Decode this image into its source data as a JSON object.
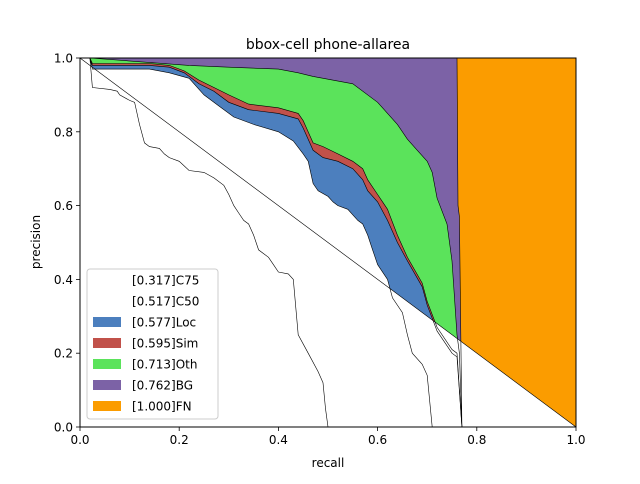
{
  "chart_data": {
    "type": "area",
    "title": "bbox-cell phone-allarea",
    "xlabel": "recall",
    "ylabel": "precision",
    "xlim": [
      0,
      1
    ],
    "ylim": [
      0,
      1
    ],
    "xticks": [
      "0.0",
      "0.2",
      "0.4",
      "0.6",
      "0.8",
      "1.0"
    ],
    "yticks": [
      "0.0",
      "0.2",
      "0.4",
      "0.6",
      "0.8",
      "1.0"
    ],
    "grid": false,
    "legend_position": "lower-left",
    "series": [
      {
        "name": "[0.317]C75",
        "color": "#ffffff",
        "points": [
          [
            0,
            1
          ],
          [
            0.02,
            1
          ],
          [
            0.025,
            0.92
          ],
          [
            0.06,
            0.915
          ],
          [
            0.075,
            0.91
          ],
          [
            0.08,
            0.9
          ],
          [
            0.1,
            0.885
          ],
          [
            0.11,
            0.88
          ],
          [
            0.12,
            0.82
          ],
          [
            0.13,
            0.77
          ],
          [
            0.14,
            0.76
          ],
          [
            0.16,
            0.755
          ],
          [
            0.17,
            0.74
          ],
          [
            0.18,
            0.73
          ],
          [
            0.2,
            0.72
          ],
          [
            0.22,
            0.695
          ],
          [
            0.25,
            0.69
          ],
          [
            0.27,
            0.675
          ],
          [
            0.29,
            0.655
          ],
          [
            0.3,
            0.63
          ],
          [
            0.31,
            0.6
          ],
          [
            0.32,
            0.58
          ],
          [
            0.33,
            0.56
          ],
          [
            0.34,
            0.55
          ],
          [
            0.35,
            0.52
          ],
          [
            0.36,
            0.48
          ],
          [
            0.38,
            0.46
          ],
          [
            0.39,
            0.44
          ],
          [
            0.4,
            0.42
          ],
          [
            0.42,
            0.415
          ],
          [
            0.43,
            0.4
          ],
          [
            0.44,
            0.25
          ],
          [
            0.46,
            0.2
          ],
          [
            0.48,
            0.15
          ],
          [
            0.49,
            0.12
          ],
          [
            0.495,
            0.05
          ],
          [
            0.5,
            0
          ],
          [
            1,
            0
          ]
        ]
      },
      {
        "name": "[0.517]C50",
        "color": "#ffffff",
        "points": [
          [
            0,
            1
          ],
          [
            0.02,
            1
          ],
          [
            0.025,
            0.97
          ],
          [
            0.14,
            0.97
          ],
          [
            0.18,
            0.96
          ],
          [
            0.22,
            0.945
          ],
          [
            0.25,
            0.9
          ],
          [
            0.28,
            0.87
          ],
          [
            0.31,
            0.84
          ],
          [
            0.35,
            0.82
          ],
          [
            0.4,
            0.8
          ],
          [
            0.43,
            0.775
          ],
          [
            0.45,
            0.74
          ],
          [
            0.46,
            0.72
          ],
          [
            0.47,
            0.66
          ],
          [
            0.48,
            0.64
          ],
          [
            0.5,
            0.625
          ],
          [
            0.51,
            0.61
          ],
          [
            0.52,
            0.6
          ],
          [
            0.54,
            0.59
          ],
          [
            0.56,
            0.56
          ],
          [
            0.57,
            0.55
          ],
          [
            0.58,
            0.52
          ],
          [
            0.59,
            0.48
          ],
          [
            0.6,
            0.44
          ],
          [
            0.62,
            0.4
          ],
          [
            0.63,
            0.35
          ],
          [
            0.65,
            0.31
          ],
          [
            0.66,
            0.25
          ],
          [
            0.67,
            0.2
          ],
          [
            0.69,
            0.17
          ],
          [
            0.7,
            0.14
          ],
          [
            0.71,
            0
          ],
          [
            1,
            0
          ]
        ]
      },
      {
        "name": "[0.577]Loc",
        "color": "#4c7fbe",
        "points": [
          [
            0,
            1
          ],
          [
            0.02,
            1
          ],
          [
            0.025,
            0.98
          ],
          [
            0.14,
            0.98
          ],
          [
            0.18,
            0.975
          ],
          [
            0.21,
            0.96
          ],
          [
            0.24,
            0.93
          ],
          [
            0.27,
            0.91
          ],
          [
            0.3,
            0.88
          ],
          [
            0.34,
            0.86
          ],
          [
            0.4,
            0.85
          ],
          [
            0.44,
            0.835
          ],
          [
            0.45,
            0.81
          ],
          [
            0.47,
            0.75
          ],
          [
            0.49,
            0.73
          ],
          [
            0.52,
            0.72
          ],
          [
            0.55,
            0.7
          ],
          [
            0.57,
            0.67
          ],
          [
            0.58,
            0.64
          ],
          [
            0.6,
            0.61
          ],
          [
            0.62,
            0.56
          ],
          [
            0.64,
            0.5
          ],
          [
            0.66,
            0.45
          ],
          [
            0.69,
            0.38
          ],
          [
            0.7,
            0.33
          ],
          [
            0.72,
            0.26
          ],
          [
            0.75,
            0.2
          ],
          [
            0.76,
            0.19
          ],
          [
            0.77,
            0
          ],
          [
            1,
            0
          ]
        ]
      },
      {
        "name": "[0.595]Sim",
        "color": "#c1514a",
        "points": [
          [
            0,
            1
          ],
          [
            0.02,
            1
          ],
          [
            0.025,
            0.985
          ],
          [
            0.14,
            0.985
          ],
          [
            0.18,
            0.98
          ],
          [
            0.21,
            0.965
          ],
          [
            0.24,
            0.94
          ],
          [
            0.27,
            0.92
          ],
          [
            0.3,
            0.9
          ],
          [
            0.34,
            0.875
          ],
          [
            0.4,
            0.865
          ],
          [
            0.44,
            0.85
          ],
          [
            0.45,
            0.83
          ],
          [
            0.47,
            0.77
          ],
          [
            0.49,
            0.76
          ],
          [
            0.52,
            0.74
          ],
          [
            0.55,
            0.72
          ],
          [
            0.57,
            0.7
          ],
          [
            0.58,
            0.67
          ],
          [
            0.6,
            0.63
          ],
          [
            0.62,
            0.59
          ],
          [
            0.64,
            0.52
          ],
          [
            0.66,
            0.46
          ],
          [
            0.69,
            0.39
          ],
          [
            0.7,
            0.34
          ],
          [
            0.72,
            0.27
          ],
          [
            0.75,
            0.21
          ],
          [
            0.76,
            0.2
          ],
          [
            0.77,
            0
          ],
          [
            1,
            0
          ]
        ]
      },
      {
        "name": "[0.713]Oth",
        "color": "#5be35b",
        "points": [
          [
            0,
            1
          ],
          [
            0.02,
            1
          ],
          [
            0.22,
            0.98
          ],
          [
            0.3,
            0.975
          ],
          [
            0.4,
            0.97
          ],
          [
            0.44,
            0.96
          ],
          [
            0.47,
            0.95
          ],
          [
            0.55,
            0.93
          ],
          [
            0.6,
            0.88
          ],
          [
            0.64,
            0.82
          ],
          [
            0.66,
            0.78
          ],
          [
            0.68,
            0.75
          ],
          [
            0.7,
            0.72
          ],
          [
            0.71,
            0.69
          ],
          [
            0.72,
            0.62
          ],
          [
            0.74,
            0.55
          ],
          [
            0.75,
            0.45
          ],
          [
            0.755,
            0.35
          ],
          [
            0.76,
            0.25
          ],
          [
            0.765,
            0.2
          ],
          [
            0.77,
            0
          ],
          [
            1,
            0
          ]
        ]
      },
      {
        "name": "[0.762]BG",
        "color": "#7c62a6",
        "points": [
          [
            0,
            1
          ],
          [
            0.76,
            1
          ],
          [
            0.762,
            0.6
          ],
          [
            0.765,
            0.57
          ],
          [
            0.77,
            0
          ],
          [
            1,
            0
          ]
        ]
      },
      {
        "name": "[1.000]FN",
        "color": "#fb9c00",
        "points": [
          [
            0,
            1
          ],
          [
            1,
            1
          ],
          [
            1,
            0
          ]
        ]
      }
    ]
  }
}
